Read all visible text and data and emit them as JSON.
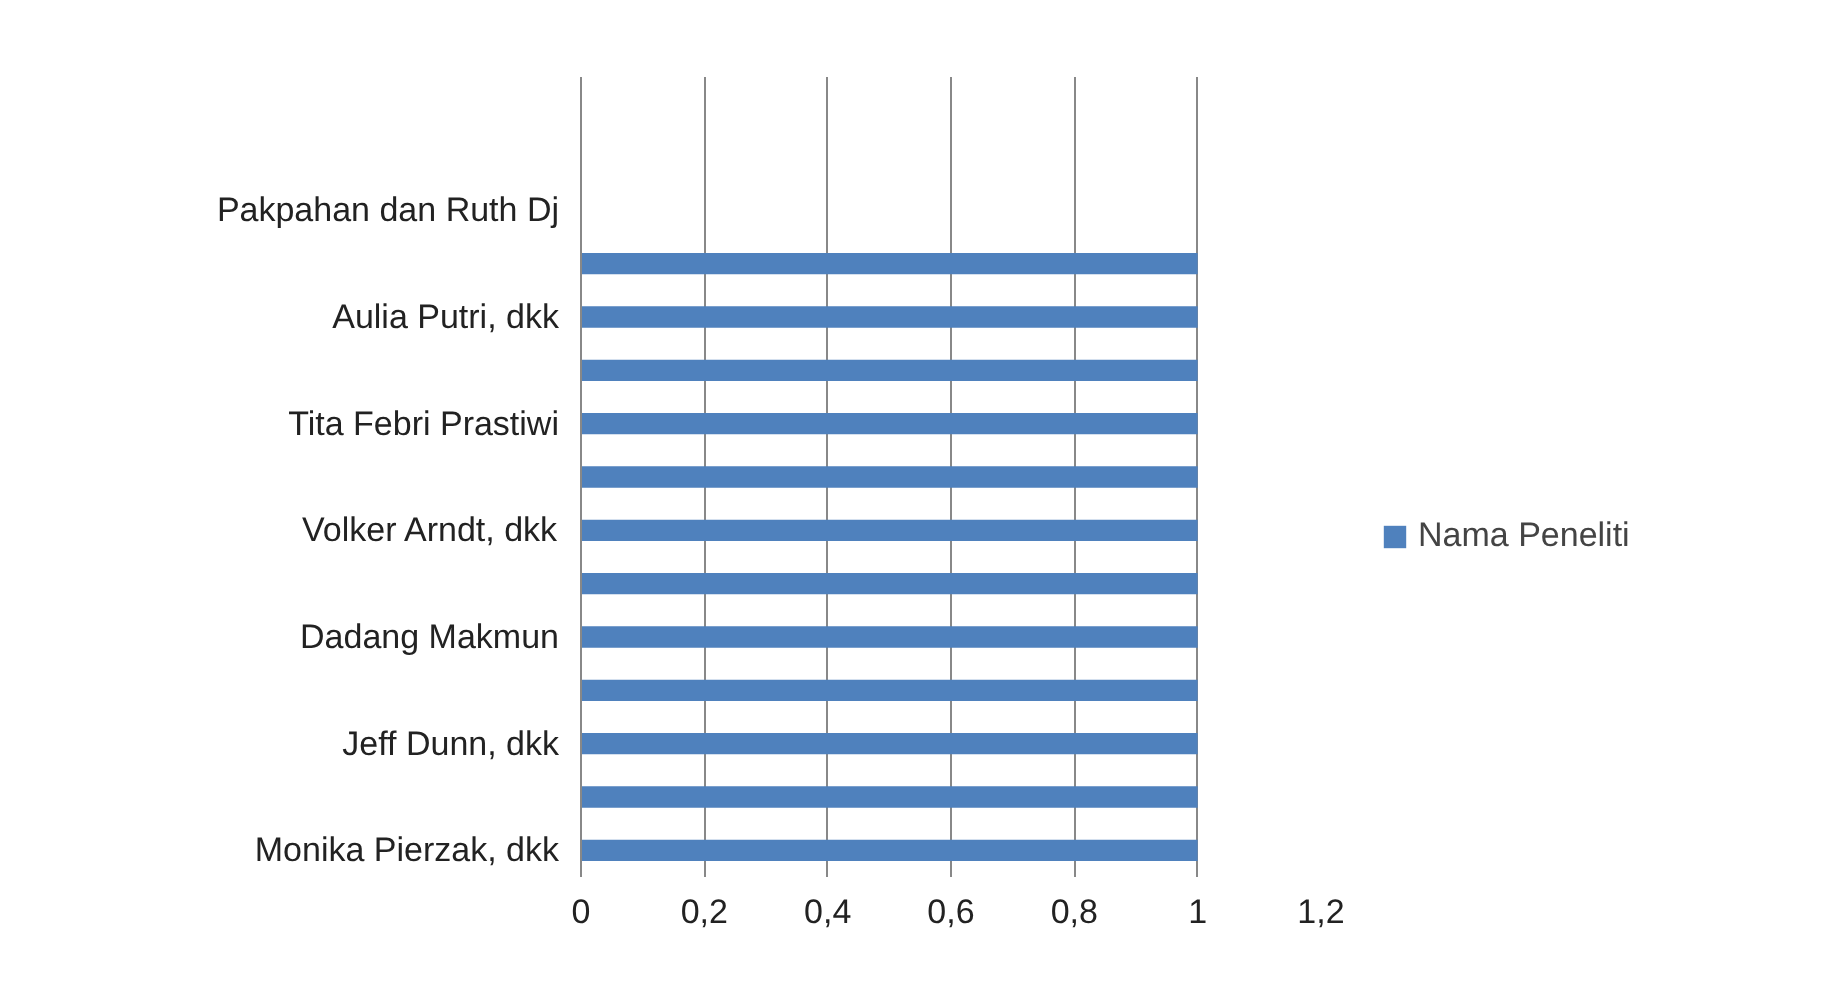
{
  "chart_data": {
    "type": "bar",
    "orientation": "horizontal",
    "categories": [
      null,
      null,
      "Pakpahan dan Ruth Dj",
      null,
      "Aulia Putri, dkk",
      null,
      "Tita Febri Prastiwi",
      null,
      "Volker Arndt, dkk",
      null,
      "Dadang Makmun",
      null,
      "Jeff Dunn, dkk",
      null,
      "Monika Pierzak, dkk"
    ],
    "series": [
      {
        "name": "Nama Peneliti",
        "color": "#4f81bd",
        "values": [
          null,
          null,
          null,
          1,
          1,
          1,
          1,
          1,
          1,
          1,
          1,
          1,
          1,
          1,
          1
        ]
      }
    ],
    "xlim": [
      0,
      1.2
    ],
    "xticks": [
      0,
      {
        "value": 0.2,
        "label": "0,2"
      },
      {
        "value": 0.4,
        "label": "0,4"
      },
      {
        "value": 0.6,
        "label": "0,6"
      },
      {
        "value": 0.8,
        "label": "0,8"
      },
      1,
      {
        "value": 1.2,
        "label": "1,2"
      }
    ],
    "grid": "x",
    "legend": "right"
  }
}
